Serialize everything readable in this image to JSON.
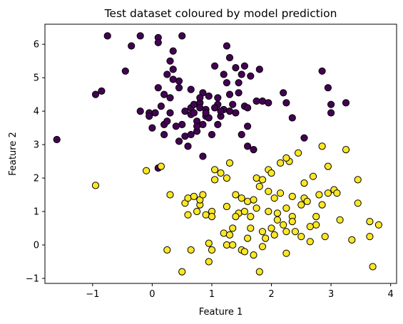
{
  "chart_data": {
    "type": "scatter",
    "title": "Test dataset coloured by model prediction",
    "xlabel": "Feature 1",
    "ylabel": "Feature 2",
    "xlim": [
      -1.8,
      4.1
    ],
    "ylim": [
      -1.15,
      6.6
    ],
    "xticks": [
      -1,
      0,
      1,
      2,
      3,
      4
    ],
    "yticks": [
      -1,
      0,
      1,
      2,
      3,
      4,
      5,
      6
    ],
    "grid": false,
    "colors": {
      "class_0": "#440154",
      "class_1": "#fde725",
      "edge": "#000000"
    },
    "series": [
      {
        "class": 0,
        "points": [
          [
            -1.6,
            3.15
          ],
          [
            -0.95,
            4.5
          ],
          [
            -0.85,
            4.6
          ],
          [
            -0.75,
            6.25
          ],
          [
            -0.35,
            5.95
          ],
          [
            -0.45,
            5.2
          ],
          [
            -0.2,
            6.25
          ],
          [
            -0.2,
            4.0
          ],
          [
            -0.05,
            3.95
          ],
          [
            -0.05,
            3.85
          ],
          [
            0.0,
            3.5
          ],
          [
            0.05,
            3.95
          ],
          [
            0.1,
            6.2
          ],
          [
            0.1,
            6.05
          ],
          [
            0.1,
            4.7
          ],
          [
            0.15,
            4.15
          ],
          [
            0.2,
            4.5
          ],
          [
            0.2,
            3.6
          ],
          [
            0.2,
            3.3
          ],
          [
            0.25,
            3.7
          ],
          [
            0.3,
            5.5
          ],
          [
            0.3,
            4.4
          ],
          [
            0.3,
            3.95
          ],
          [
            0.35,
            5.8
          ],
          [
            0.35,
            5.25
          ],
          [
            0.45,
            4.7
          ],
          [
            0.45,
            3.1
          ],
          [
            0.45,
            4.9
          ],
          [
            0.5,
            6.25
          ],
          [
            0.5,
            3.6
          ],
          [
            0.55,
            3.25
          ],
          [
            0.65,
            4.1
          ],
          [
            0.65,
            4.65
          ],
          [
            0.65,
            3.9
          ],
          [
            0.7,
            4.2
          ],
          [
            0.7,
            3.95
          ],
          [
            0.75,
            3.7
          ],
          [
            0.75,
            3.4
          ],
          [
            0.8,
            4.25
          ],
          [
            0.8,
            4.1
          ],
          [
            0.85,
            3.6
          ],
          [
            0.85,
            4.55
          ],
          [
            0.85,
            2.65
          ],
          [
            0.9,
            3.85
          ],
          [
            0.9,
            4.05
          ],
          [
            0.95,
            4.45
          ],
          [
            1.0,
            3.3
          ],
          [
            1.05,
            5.35
          ],
          [
            1.1,
            4.2
          ],
          [
            1.1,
            4.4
          ],
          [
            1.15,
            3.85
          ],
          [
            1.2,
            5.1
          ],
          [
            1.25,
            5.95
          ],
          [
            1.25,
            4.85
          ],
          [
            1.3,
            4.5
          ],
          [
            1.35,
            4.2
          ],
          [
            1.4,
            3.95
          ],
          [
            1.45,
            4.85
          ],
          [
            1.45,
            4.55
          ],
          [
            1.5,
            5.1
          ],
          [
            1.55,
            5.35
          ],
          [
            1.55,
            4.15
          ],
          [
            1.6,
            4.1
          ],
          [
            1.6,
            2.95
          ],
          [
            1.65,
            5.05
          ],
          [
            1.7,
            2.85
          ],
          [
            1.75,
            4.3
          ],
          [
            1.8,
            5.25
          ],
          [
            1.85,
            4.3
          ],
          [
            2.2,
            4.55
          ],
          [
            2.25,
            4.25
          ],
          [
            2.35,
            3.8
          ],
          [
            2.55,
            3.2
          ],
          [
            2.85,
            5.2
          ],
          [
            2.95,
            4.7
          ],
          [
            3.0,
            4.2
          ],
          [
            3.0,
            3.95
          ],
          [
            3.25,
            4.25
          ],
          [
            1.3,
            5.6
          ],
          [
            1.5,
            3.3
          ],
          [
            1.05,
            4.1
          ],
          [
            0.4,
            3.55
          ],
          [
            0.55,
            4.0
          ],
          [
            1.1,
            3.6
          ],
          [
            0.25,
            5.1
          ],
          [
            0.35,
            4.95
          ],
          [
            0.8,
            4.4
          ],
          [
            1.2,
            4.05
          ],
          [
            1.4,
            5.3
          ],
          [
            1.6,
            3.55
          ],
          [
            0.6,
            2.95
          ],
          [
            1.95,
            4.25
          ],
          [
            0.1,
            2.3
          ],
          [
            0.75,
            3.55
          ],
          [
            0.95,
            3.8
          ],
          [
            0.65,
            3.3
          ],
          [
            1.15,
            4.0
          ],
          [
            1.3,
            4.0
          ],
          [
            0.9,
            3.95
          ]
        ]
      },
      {
        "class": 1,
        "points": [
          [
            -0.95,
            1.78
          ],
          [
            -0.1,
            2.22
          ],
          [
            0.15,
            2.35
          ],
          [
            0.25,
            -0.15
          ],
          [
            0.3,
            1.5
          ],
          [
            0.5,
            -0.8
          ],
          [
            0.55,
            1.25
          ],
          [
            0.6,
            1.4
          ],
          [
            0.6,
            0.9
          ],
          [
            0.65,
            -0.15
          ],
          [
            0.7,
            1.45
          ],
          [
            0.75,
            1.0
          ],
          [
            0.8,
            1.2
          ],
          [
            0.8,
            1.35
          ],
          [
            0.9,
            0.9
          ],
          [
            0.95,
            0.05
          ],
          [
            0.95,
            -0.5
          ],
          [
            1.0,
            -0.15
          ],
          [
            1.0,
            1.0
          ],
          [
            1.05,
            2.25
          ],
          [
            1.05,
            1.95
          ],
          [
            1.15,
            2.15
          ],
          [
            1.2,
            0.35
          ],
          [
            1.25,
            2.0
          ],
          [
            1.25,
            1.15
          ],
          [
            1.25,
            0.0
          ],
          [
            1.3,
            0.3
          ],
          [
            1.35,
            0.0
          ],
          [
            1.35,
            0.5
          ],
          [
            1.4,
            1.5
          ],
          [
            1.45,
            0.95
          ],
          [
            1.5,
            -0.15
          ],
          [
            1.55,
            -0.2
          ],
          [
            1.55,
            1.0
          ],
          [
            1.6,
            1.3
          ],
          [
            1.65,
            0.5
          ],
          [
            1.65,
            0.85
          ],
          [
            1.7,
            -0.3
          ],
          [
            1.75,
            2.0
          ],
          [
            1.75,
            1.1
          ],
          [
            1.8,
            -0.8
          ],
          [
            1.8,
            1.75
          ],
          [
            1.85,
            0.4
          ],
          [
            1.85,
            1.95
          ],
          [
            1.85,
            -0.05
          ],
          [
            1.9,
            0.2
          ],
          [
            1.95,
            2.25
          ],
          [
            1.95,
            1.0
          ],
          [
            2.0,
            0.5
          ],
          [
            2.05,
            1.4
          ],
          [
            2.1,
            0.95
          ],
          [
            2.15,
            1.55
          ],
          [
            2.15,
            2.45
          ],
          [
            2.2,
            0.6
          ],
          [
            2.25,
            -0.25
          ],
          [
            2.25,
            1.1
          ],
          [
            2.3,
            2.5
          ],
          [
            2.35,
            1.45
          ],
          [
            2.35,
            0.85
          ],
          [
            2.4,
            0.4
          ],
          [
            2.5,
            0.25
          ],
          [
            2.5,
            1.2
          ],
          [
            2.55,
            1.4
          ],
          [
            2.6,
            1.3
          ],
          [
            2.65,
            0.1
          ],
          [
            2.7,
            2.05
          ],
          [
            2.75,
            0.6
          ],
          [
            2.8,
            1.5
          ],
          [
            2.85,
            2.95
          ],
          [
            2.9,
            0.25
          ],
          [
            2.95,
            2.35
          ],
          [
            3.05,
            1.65
          ],
          [
            3.1,
            1.55
          ],
          [
            3.15,
            0.75
          ],
          [
            3.25,
            2.85
          ],
          [
            3.35,
            0.15
          ],
          [
            3.45,
            1.95
          ],
          [
            3.45,
            1.25
          ],
          [
            3.65,
            0.25
          ],
          [
            3.7,
            -0.65
          ],
          [
            3.8,
            0.6
          ],
          [
            1.0,
            0.85
          ],
          [
            1.3,
            2.45
          ],
          [
            2.0,
            2.15
          ],
          [
            2.25,
            2.6
          ],
          [
            2.45,
            2.75
          ],
          [
            2.55,
            1.85
          ],
          [
            2.05,
            0.3
          ],
          [
            2.1,
            0.75
          ],
          [
            1.5,
            1.4
          ],
          [
            1.6,
            0.2
          ],
          [
            2.75,
            0.85
          ],
          [
            2.95,
            1.55
          ],
          [
            0.85,
            1.5
          ],
          [
            1.4,
            0.85
          ],
          [
            2.25,
            0.4
          ],
          [
            2.65,
            0.55
          ],
          [
            3.65,
            0.7
          ],
          [
            2.85,
            1.2
          ],
          [
            1.7,
            1.35
          ],
          [
            1.95,
            1.6
          ],
          [
            2.35,
            0.7
          ]
        ]
      }
    ]
  }
}
